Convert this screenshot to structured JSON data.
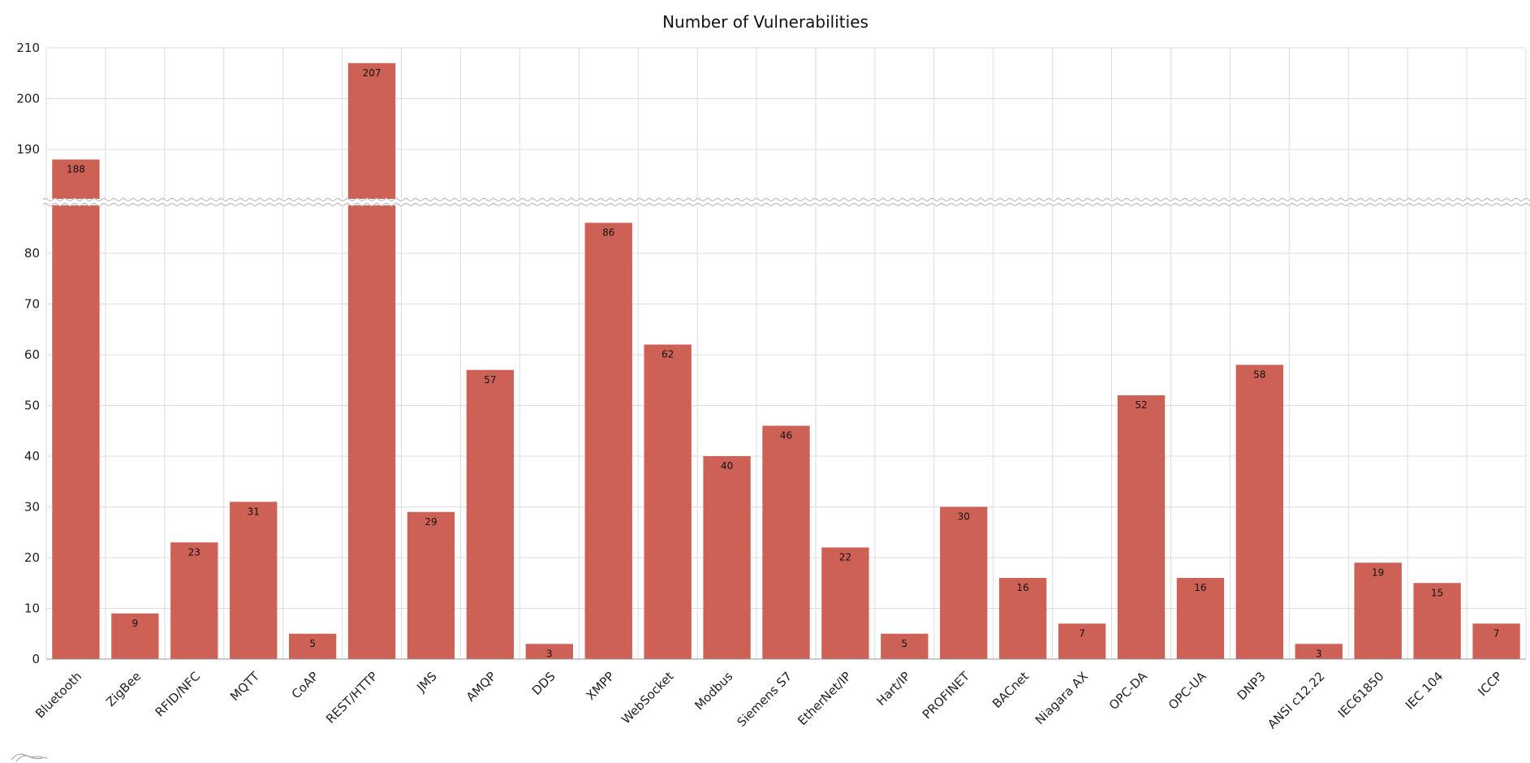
{
  "chart_data": {
    "type": "bar",
    "title": "Number of Vulnerabilities",
    "xlabel": "",
    "ylabel": "",
    "categories": [
      "Bluetooth",
      "ZigBee",
      "RFID/NFC",
      "MQTT",
      "CoAP",
      "REST/HTTP",
      "JMS",
      "AMQP",
      "DDS",
      "XMPP",
      "WebSocket",
      "Modbus",
      "Siemens S7",
      "EtherNet/IP",
      "Hart/IP",
      "PROFINET",
      "BACnet",
      "Niagara AX",
      "OPC-DA",
      "OPC-UA",
      "DNP3",
      "ANSI c12.22",
      "IEC61850",
      "IEC 104",
      "ICCP"
    ],
    "values": [
      188,
      9,
      23,
      31,
      5,
      207,
      29,
      57,
      3,
      86,
      62,
      40,
      46,
      22,
      5,
      30,
      16,
      7,
      52,
      16,
      58,
      3,
      19,
      15,
      7
    ],
    "ylim": [
      0,
      210
    ],
    "axis_break": [
      90,
      180
    ],
    "yticks_lower": [
      0,
      10,
      20,
      30,
      40,
      50,
      60,
      70,
      80
    ],
    "yticks_upper": [
      190,
      200,
      210
    ],
    "data_labels": true,
    "grid": true,
    "bar_color": "#cd6155"
  }
}
